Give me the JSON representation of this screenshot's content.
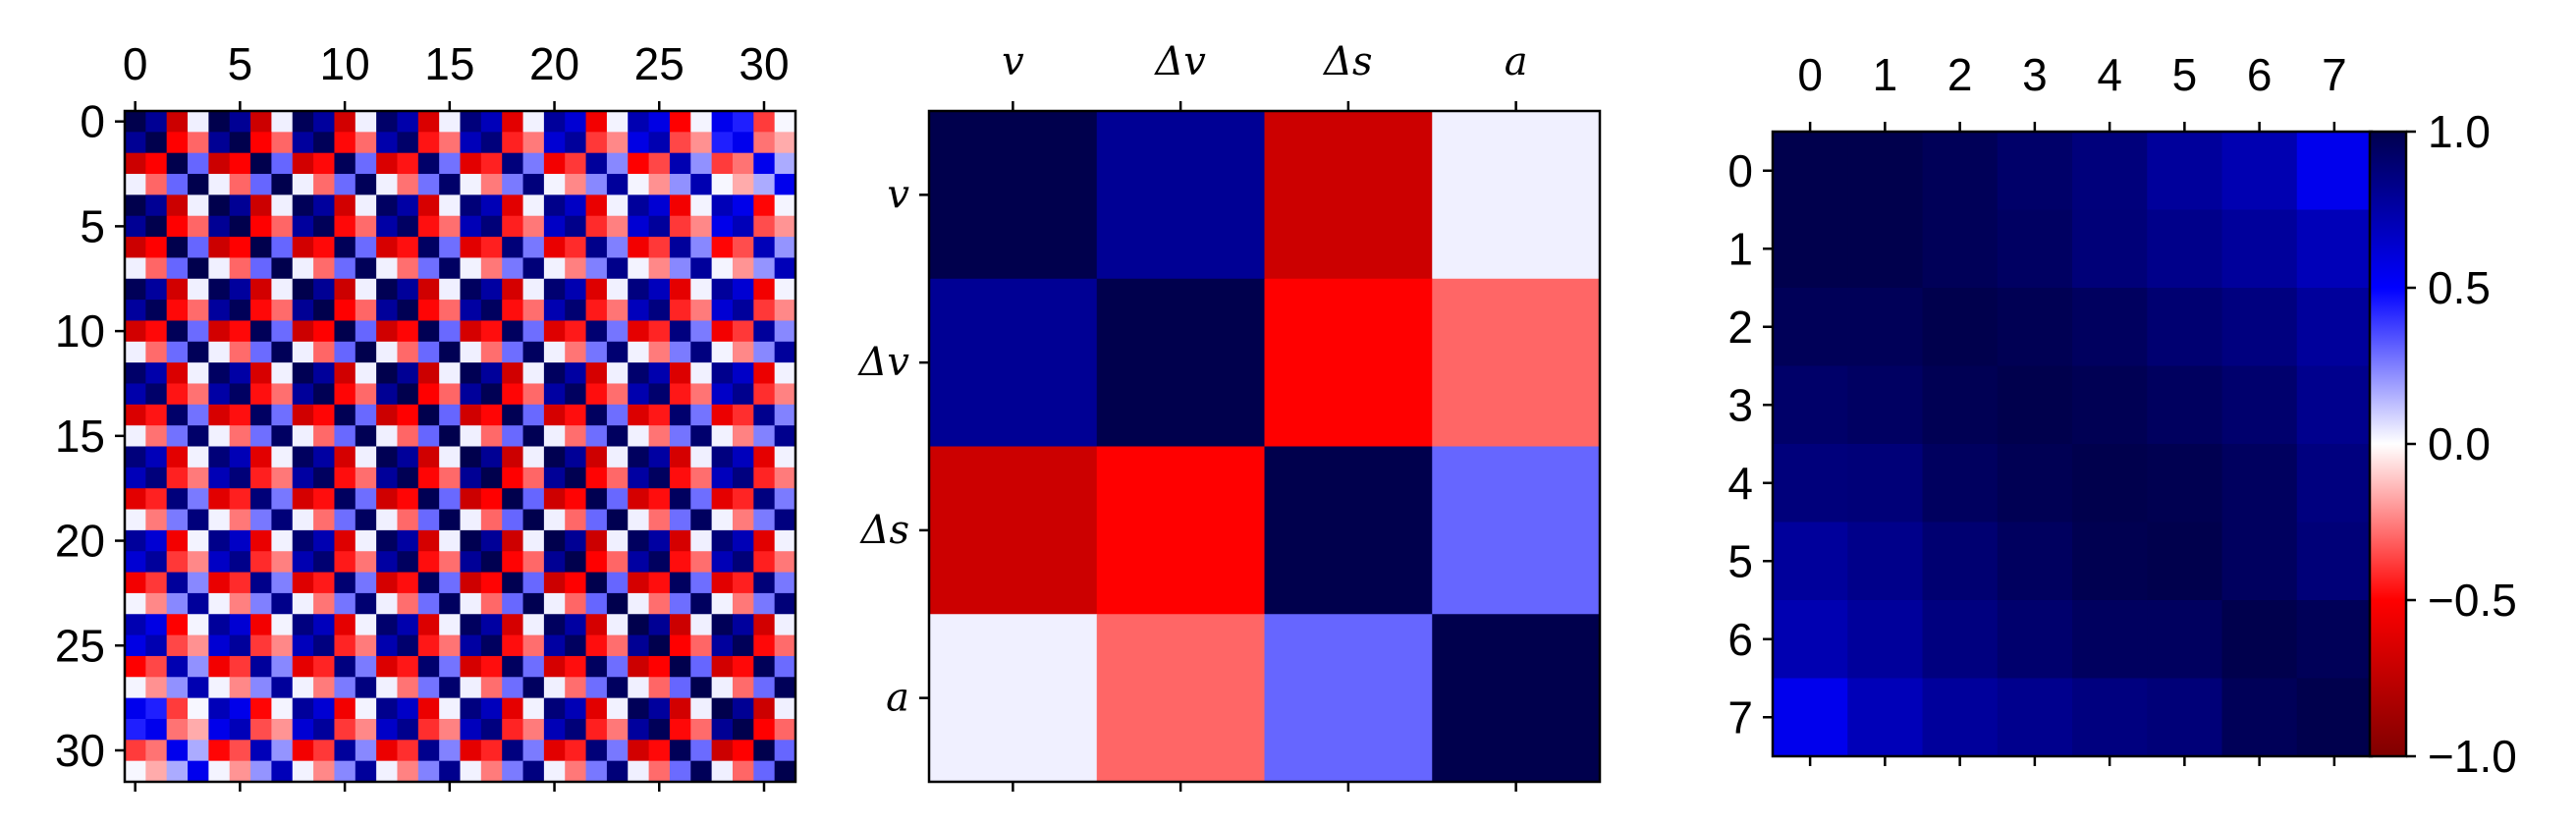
{
  "chart_data": [
    {
      "type": "heatmap",
      "title": "",
      "size": 32,
      "x_tick_labels": [
        "0",
        "5",
        "10",
        "15",
        "20",
        "25",
        "30"
      ],
      "y_tick_labels": [
        "0",
        "5",
        "10",
        "15",
        "20",
        "25",
        "30"
      ],
      "x_tick_values": [
        0,
        5,
        10,
        15,
        20,
        25,
        30
      ],
      "y_tick_values": [
        0,
        5,
        10,
        15,
        20,
        25,
        30
      ],
      "value_range": [
        -1,
        1
      ],
      "structure": "4x4 block correlation pattern (variables v, Δv, Δs, a) repeated over 8 lags; value(i,j) = r4[i mod 4][j mod 4] × decay(floor(i/4), floor(j/4)) where r4 is the middle matrix and decay is the right matrix"
    },
    {
      "type": "heatmap",
      "title": "",
      "categories": [
        "v",
        "Δv",
        "Δs",
        "a"
      ],
      "values": [
        [
          1.0,
          0.8,
          -0.7,
          0.03
        ],
        [
          0.8,
          1.0,
          -0.5,
          -0.3
        ],
        [
          -0.7,
          -0.5,
          1.0,
          0.3
        ],
        [
          0.03,
          -0.3,
          0.3,
          1.0
        ]
      ],
      "value_range": [
        -1,
        1
      ]
    },
    {
      "type": "heatmap",
      "title": "",
      "categories": [
        "0",
        "1",
        "2",
        "3",
        "4",
        "5",
        "6",
        "7"
      ],
      "values": [
        [
          1.0,
          1.0,
          0.97,
          0.92,
          0.87,
          0.78,
          0.72,
          0.55
        ],
        [
          1.0,
          1.0,
          0.97,
          0.94,
          0.88,
          0.83,
          0.78,
          0.7
        ],
        [
          0.97,
          0.97,
          1.0,
          0.98,
          0.95,
          0.9,
          0.86,
          0.78
        ],
        [
          0.92,
          0.94,
          0.98,
          1.0,
          0.98,
          0.95,
          0.91,
          0.82
        ],
        [
          0.87,
          0.88,
          0.95,
          0.98,
          1.0,
          0.99,
          0.95,
          0.86
        ],
        [
          0.78,
          0.83,
          0.9,
          0.95,
          0.99,
          1.0,
          0.95,
          0.88
        ],
        [
          0.72,
          0.78,
          0.86,
          0.91,
          0.95,
          0.95,
          1.0,
          0.97
        ],
        [
          0.55,
          0.7,
          0.78,
          0.82,
          0.86,
          0.88,
          0.97,
          1.0
        ]
      ],
      "value_range": [
        -1,
        1
      ],
      "colorbar": {
        "ticks": [
          1.0,
          0.5,
          0.0,
          -0.5,
          -1.0
        ],
        "tick_labels": [
          "1.0",
          "0.5",
          "0.0",
          "−0.5",
          "−1.0"
        ]
      }
    }
  ],
  "colormap": {
    "name": "seismic_r",
    "stops": [
      {
        "value": -1.0,
        "color": "#800000"
      },
      {
        "value": -0.5,
        "color": "#ff0000"
      },
      {
        "value": 0.0,
        "color": "#ffffff"
      },
      {
        "value": 0.5,
        "color": "#0000ff"
      },
      {
        "value": 1.0,
        "color": "#00004d"
      }
    ]
  }
}
